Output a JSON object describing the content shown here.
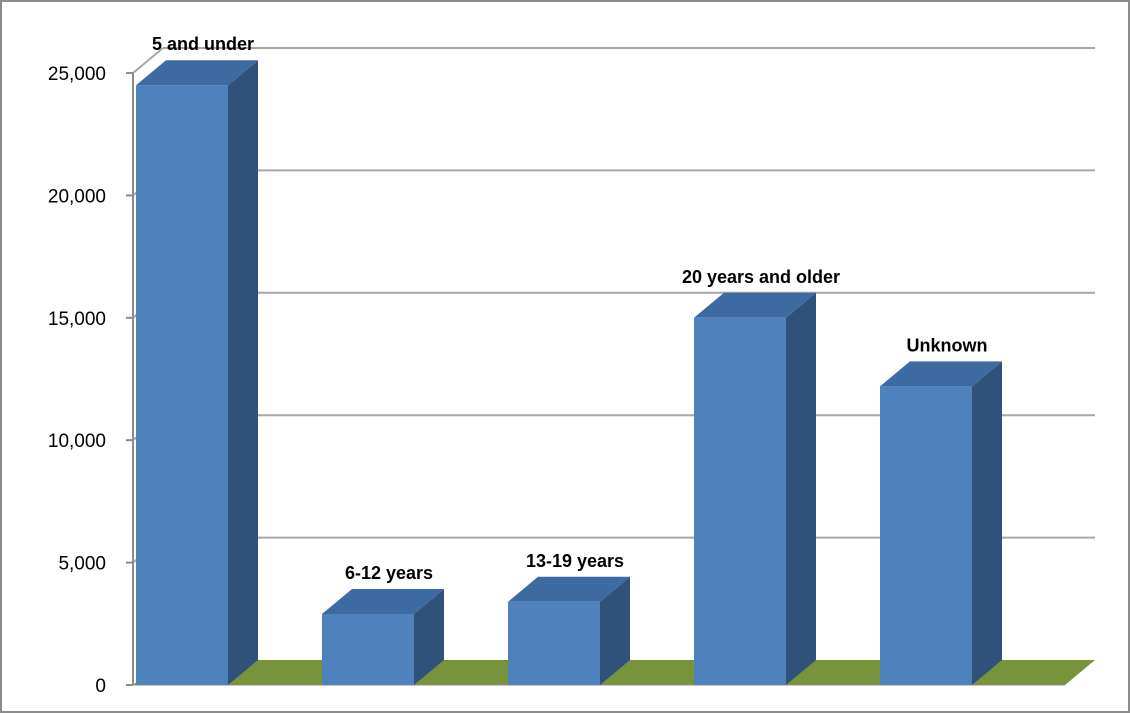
{
  "chart_data": {
    "type": "bar",
    "categories": [
      "5 and under",
      "6-12 years",
      "13-19 years",
      "20 years and older",
      "Unknown"
    ],
    "values": [
      24500,
      2900,
      3400,
      15000,
      12200
    ],
    "ylim": [
      0,
      25000
    ],
    "yticks": [
      0,
      5000,
      10000,
      15000,
      20000,
      25000
    ],
    "ytick_labels": [
      "0",
      "5,000",
      "10,000",
      "15,000",
      "20,000",
      "25,000"
    ],
    "grid": true,
    "legend": "none",
    "style": "3d-column",
    "colors": {
      "bar_front": "#4f81bd",
      "bar_side": "#30527a",
      "bar_top": "#3d6aa0",
      "floor": "#77933c",
      "gridline": "#a6a6a6"
    }
  }
}
